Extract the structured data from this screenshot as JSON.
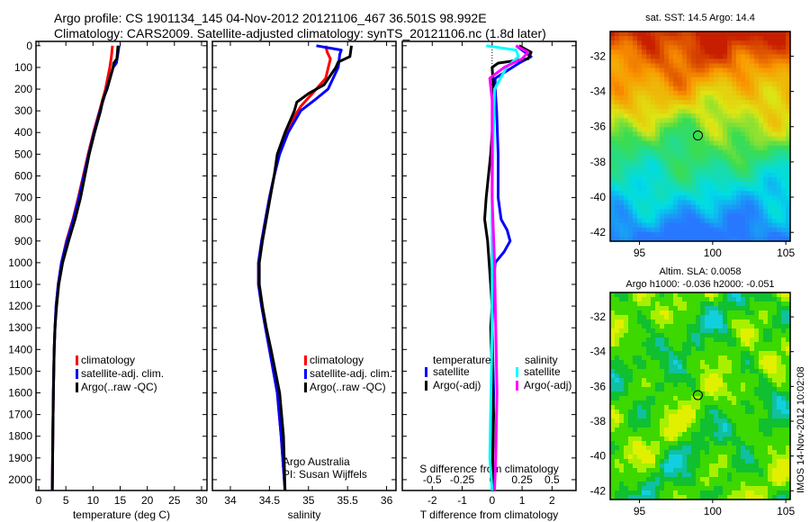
{
  "title_line1": "Argo profile: CS 1901134_145 04-Nov-2012 20121106_467 36.501S 98.992E",
  "title_line2": "Climatology: CARS2009. Satellite-adjusted climatology: synTS_20121106.nc (1.8d later)",
  "colors": {
    "climatology": "#ff0000",
    "satellite": "#0000ff",
    "argo": "#000000",
    "sal_satellite": "#00ffff",
    "sal_argo": "#ff00ff"
  },
  "depth_ticks": [
    0,
    100,
    200,
    300,
    400,
    500,
    600,
    700,
    800,
    900,
    1000,
    1100,
    1200,
    1300,
    1400,
    1500,
    1600,
    1700,
    1800,
    1900,
    2000
  ],
  "chart_data": [
    {
      "type": "line",
      "name": "temperature",
      "xlabel": "temperature (deg C)",
      "ylabel": "depth",
      "xlim": [
        -0.5,
        31
      ],
      "ylim": [
        2050,
        -20
      ],
      "xticks": [
        0,
        5,
        10,
        15,
        20,
        25,
        30
      ],
      "legend": [
        "climatology",
        "satellite-adj. clim.",
        "Argo(..raw -QC)"
      ],
      "series": [
        {
          "name": "climatology",
          "depth": [
            0,
            50,
            100,
            200,
            300,
            400,
            500,
            600,
            700,
            800,
            900,
            1000,
            1100,
            1200,
            1300,
            1400,
            1600,
            1800,
            2050
          ],
          "values": [
            13.6,
            13.4,
            13.1,
            12.3,
            11.2,
            10.1,
            9.1,
            8.2,
            7.3,
            6.3,
            5.1,
            4.2,
            3.6,
            3.2,
            3.0,
            2.85,
            2.7,
            2.6,
            2.5
          ]
        },
        {
          "name": "satellite-adj. clim.",
          "depth": [
            0,
            50,
            80,
            100,
            200,
            300,
            400,
            500,
            600,
            700,
            800,
            900,
            1000,
            1100,
            1200,
            1300,
            1400,
            1600,
            1800,
            2050
          ],
          "values": [
            14.8,
            14.5,
            14.3,
            13.7,
            12.5,
            11.3,
            10.2,
            9.2,
            8.3,
            7.4,
            6.4,
            5.2,
            4.2,
            3.6,
            3.2,
            3.0,
            2.85,
            2.7,
            2.6,
            2.5
          ]
        },
        {
          "name": "Argo(..raw -QC)",
          "depth": [
            0,
            60,
            80,
            100,
            200,
            250,
            300,
            400,
            500,
            600,
            700,
            800,
            900,
            1000,
            1100,
            1200,
            1300,
            1400,
            1600,
            1800,
            2050
          ],
          "values": [
            14.6,
            14.4,
            13.8,
            13.7,
            12.6,
            11.8,
            11.4,
            10.3,
            9.3,
            8.5,
            7.7,
            6.7,
            5.5,
            4.4,
            3.7,
            3.3,
            3.0,
            2.85,
            2.7,
            2.6,
            2.5
          ]
        }
      ]
    },
    {
      "type": "line",
      "name": "salinity",
      "xlabel": "salinity",
      "ylabel": "depth",
      "xlim": [
        33.77,
        36.12
      ],
      "ylim": [
        2050,
        -20
      ],
      "xticks": [
        34,
        34.5,
        35,
        35.5,
        36
      ],
      "legend": [
        "climatology",
        "satellite-adj. clim.",
        "Argo(..raw -QC)"
      ],
      "annotation": [
        "Argo Australia",
        "PI: Susan Wijffels"
      ],
      "series": [
        {
          "name": "climatology",
          "depth": [
            0,
            30,
            60,
            150,
            220,
            280,
            350,
            400,
            500,
            600,
            700,
            800,
            900,
            1000,
            1100,
            1200,
            1300,
            1400,
            1600,
            1800,
            2050
          ],
          "values": [
            35.22,
            35.24,
            35.28,
            35.22,
            35.05,
            34.9,
            34.78,
            34.72,
            34.62,
            34.56,
            34.5,
            34.45,
            34.4,
            34.36,
            34.36,
            34.4,
            34.45,
            34.5,
            34.6,
            34.65,
            34.7
          ]
        },
        {
          "name": "satellite-adj. clim.",
          "depth": [
            0,
            20,
            40,
            100,
            200,
            250,
            300,
            400,
            500,
            600,
            700,
            800,
            900,
            1000,
            1100,
            1200,
            1300,
            1400,
            1600,
            1800,
            2050
          ],
          "values": [
            35.1,
            35.42,
            35.4,
            35.38,
            35.25,
            35.08,
            34.9,
            34.74,
            34.63,
            34.56,
            34.5,
            34.45,
            34.4,
            34.36,
            34.36,
            34.4,
            34.45,
            34.5,
            34.6,
            34.65,
            34.7
          ]
        },
        {
          "name": "Argo(..raw -QC)",
          "depth": [
            0,
            50,
            75,
            100,
            180,
            220,
            260,
            300,
            400,
            500,
            600,
            700,
            800,
            900,
            1000,
            1100,
            1200,
            1300,
            1400,
            1600,
            1800,
            2050
          ],
          "values": [
            35.55,
            35.53,
            35.38,
            35.35,
            35.2,
            35.0,
            34.85,
            34.82,
            34.7,
            34.6,
            34.56,
            34.51,
            34.46,
            34.41,
            34.37,
            34.37,
            34.41,
            34.46,
            34.52,
            34.63,
            34.68,
            34.7
          ]
        }
      ]
    },
    {
      "type": "line",
      "name": "difference",
      "xlabel": "T difference from climatology",
      "x2label": "S difference from climatology",
      "xlim": [
        -3,
        2.8
      ],
      "ylim": [
        2050,
        -20
      ],
      "xticks": [
        -2,
        -1,
        0,
        1,
        2
      ],
      "x2ticks": [
        -0.5,
        -0.25,
        0,
        0.25,
        0.5
      ],
      "legend_headers": [
        "temperature",
        "salinity"
      ],
      "legend": [
        "satellite",
        "Argo(-adj)",
        "satellite",
        "Argo(-adj)"
      ],
      "series": [
        {
          "name": "T satellite",
          "var": "T",
          "depth": [
            0,
            20,
            50,
            80,
            150,
            200,
            300,
            500,
            700,
            800,
            850,
            900,
            950,
            1000,
            1100,
            1300,
            1600,
            2050
          ],
          "values": [
            0.8,
            1.0,
            1.3,
            0.9,
            0.1,
            0.1,
            0.15,
            0.2,
            0.2,
            0.3,
            0.5,
            0.6,
            0.4,
            0.1,
            0.05,
            0.0,
            0.05,
            0.0
          ]
        },
        {
          "name": "T Argo(-adj)",
          "var": "T",
          "depth": [
            0,
            30,
            60,
            80,
            100,
            200,
            300,
            500,
            700,
            800,
            900,
            1000,
            1100,
            1200,
            1300,
            1500,
            1700,
            2050
          ],
          "values": [
            0.9,
            1.3,
            1.2,
            0.2,
            0.0,
            0.05,
            0.05,
            -0.05,
            -0.2,
            -0.25,
            -0.15,
            -0.1,
            -0.05,
            0.0,
            -0.05,
            0.0,
            0.05,
            0.0
          ]
        },
        {
          "name": "S satellite",
          "var": "S",
          "depth": [
            0,
            20,
            50,
            100,
            200,
            400,
            700,
            1000,
            1300,
            1600,
            1900,
            2050
          ],
          "values": [
            -0.05,
            0.2,
            0.22,
            0.12,
            0.02,
            0.01,
            0.0,
            0.0,
            0.0,
            -0.01,
            -0.02,
            0.0
          ]
        },
        {
          "name": "S Argo(-adj)",
          "var": "S",
          "depth": [
            0,
            30,
            60,
            100,
            150,
            250,
            400,
            700,
            1000,
            1300,
            1600,
            1900,
            2050
          ],
          "values": [
            0.2,
            0.3,
            0.25,
            0.1,
            -0.02,
            0.0,
            0.0,
            0.0,
            0.02,
            0.03,
            0.04,
            0.03,
            0.02
          ]
        }
      ]
    }
  ],
  "maps": [
    {
      "name": "sst-map",
      "title": [
        "sat. SST: 14.5 Argo: 14.4"
      ],
      "lon_ticks": [
        95,
        100,
        105
      ],
      "lat_ticks": [
        -32,
        -34,
        -36,
        -38,
        -40,
        -42
      ],
      "lon_range": [
        93,
        105.3
      ],
      "lat_range": [
        -30.6,
        -42.5
      ],
      "argo_position": [
        98.992,
        -36.501
      ]
    },
    {
      "name": "sla-map",
      "title": [
        "Altim. SLA: 0.0058",
        "Argo h1000: -0.036 h2000: -0.051"
      ],
      "lon_ticks": [
        95,
        100,
        105
      ],
      "lat_ticks": [
        -32,
        -34,
        -36,
        -38,
        -40,
        -42
      ],
      "lon_range": [
        93,
        105.3
      ],
      "lat_range": [
        -30.6,
        -42.5
      ],
      "argo_position": [
        98.992,
        -36.501
      ]
    }
  ],
  "footer_stamp": "IMOS 14-Nov-2012 10:02:08"
}
